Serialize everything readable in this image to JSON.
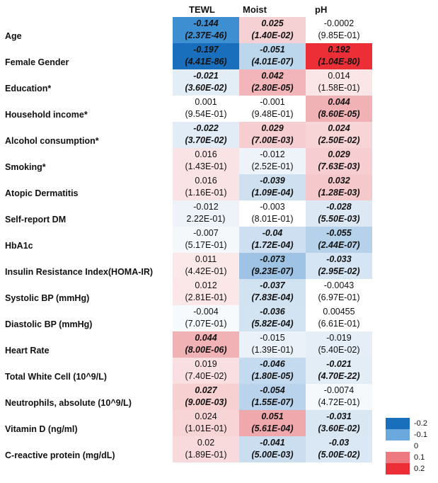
{
  "columns": [
    "TEWL",
    "Moist",
    "pH"
  ],
  "rows": [
    {
      "label": "Age",
      "cells": [
        {
          "coef": "-0.144",
          "p": "(2.37E-46)",
          "sig": true,
          "color": "#3d8fd2"
        },
        {
          "coef": "0.025",
          "p": "(1.40E-02)",
          "sig": true,
          "color": "#f6d1d3"
        },
        {
          "coef": "-0.0002",
          "p": "(9.85E-01)",
          "sig": false,
          "color": "#ffffff"
        }
      ]
    },
    {
      "label": "Female Gender",
      "cells": [
        {
          "coef": "-0.197",
          "p": "(4.41E-86)",
          "sig": true,
          "color": "#1a6fbd"
        },
        {
          "coef": "-0.051",
          "p": "(4.01E-07)",
          "sig": true,
          "color": "#bcd6ec"
        },
        {
          "coef": "0.192",
          "p": "(1.04E-80)",
          "sig": true,
          "color": "#ec2f36"
        }
      ]
    },
    {
      "label": "Education*",
      "cells": [
        {
          "coef": "-0.021",
          "p": "(3.60E-02)",
          "sig": true,
          "color": "#e3edf6"
        },
        {
          "coef": "0.042",
          "p": "(2.80E-05)",
          "sig": true,
          "color": "#f2b6ba"
        },
        {
          "coef": "0.014",
          "p": "(1.58E-01)",
          "sig": false,
          "color": "#fbe6e7"
        }
      ]
    },
    {
      "label": "Household income*",
      "cells": [
        {
          "coef": "0.001",
          "p": "(9.54E-01)",
          "sig": false,
          "color": "#ffffff"
        },
        {
          "coef": "-0.001",
          "p": "(9.48E-01)",
          "sig": false,
          "color": "#ffffff"
        },
        {
          "coef": "0.044",
          "p": "(8.60E-05)",
          "sig": true,
          "color": "#f1b2b6"
        }
      ]
    },
    {
      "label": "Alcohol consumption*",
      "cells": [
        {
          "coef": "-0.022",
          "p": "(3.70E-02)",
          "sig": true,
          "color": "#e2ecf6"
        },
        {
          "coef": "0.029",
          "p": "(7.00E-03)",
          "sig": true,
          "color": "#f6cdd0"
        },
        {
          "coef": "0.024",
          "p": "(2.50E-02)",
          "sig": true,
          "color": "#f7d4d6"
        }
      ]
    },
    {
      "label": "Smoking*",
      "cells": [
        {
          "coef": "0.016",
          "p": "(1.43E-01)",
          "sig": false,
          "color": "#fae3e4"
        },
        {
          "coef": "-0.012",
          "p": "(2.52E-01)",
          "sig": false,
          "color": "#edf3f9"
        },
        {
          "coef": "0.029",
          "p": "(7.63E-03)",
          "sig": true,
          "color": "#f6cdd0"
        }
      ]
    },
    {
      "label": "Atopic Dermatitis",
      "cells": [
        {
          "coef": "0.016",
          "p": "(1.16E-01)",
          "sig": false,
          "color": "#fae3e4"
        },
        {
          "coef": "-0.039",
          "p": "(1.09E-04)",
          "sig": true,
          "color": "#cfe1f1"
        },
        {
          "coef": "0.032",
          "p": "(1.28E-03)",
          "sig": true,
          "color": "#f5c8cb"
        }
      ]
    },
    {
      "label": "Self-report DM",
      "cells": [
        {
          "coef": "-0.012",
          "p": "2.22E-01)",
          "sig": false,
          "color": "#edf3f9"
        },
        {
          "coef": "-0.003",
          "p": "(8.01E-01)",
          "sig": false,
          "color": "#ffffff"
        },
        {
          "coef": "-0.028",
          "p": "(5.50E-03)",
          "sig": true,
          "color": "#dce8f4"
        }
      ]
    },
    {
      "label": "HbA1c",
      "cells": [
        {
          "coef": "-0.007",
          "p": "(5.17E-01)",
          "sig": false,
          "color": "#f4f8fb"
        },
        {
          "coef": "-0.04",
          "p": "(1.72E-04)",
          "sig": true,
          "color": "#cddff0"
        },
        {
          "coef": "-0.055",
          "p": "(2.44E-07)",
          "sig": true,
          "color": "#b6d2ea"
        }
      ]
    },
    {
      "label": "Insulin Resistance Index(HOMA-IR)",
      "cells": [
        {
          "coef": "0.011",
          "p": "(4.42E-01)",
          "sig": false,
          "color": "#fbe8e9"
        },
        {
          "coef": "-0.073",
          "p": "(9.23E-07)",
          "sig": true,
          "color": "#9fc3e4"
        },
        {
          "coef": "-0.033",
          "p": "(2.95E-02)",
          "sig": true,
          "color": "#d6e5f3"
        }
      ]
    },
    {
      "label": "Systolic BP (mmHg)",
      "cells": [
        {
          "coef": "0.012",
          "p": "(2.81E-01)",
          "sig": false,
          "color": "#fbe7e8"
        },
        {
          "coef": "-0.037",
          "p": "(7.83E-04)",
          "sig": true,
          "color": "#d1e2f1"
        },
        {
          "coef": "-0.0043",
          "p": "(6.97E-01)",
          "sig": false,
          "color": "#ffffff"
        }
      ]
    },
    {
      "label": "Diastolic BP (mmHg)",
      "cells": [
        {
          "coef": "-0.004",
          "p": "(7.07E-01)",
          "sig": false,
          "color": "#f7fafc"
        },
        {
          "coef": "-0.036",
          "p": "(5.82E-04)",
          "sig": true,
          "color": "#d2e3f2"
        },
        {
          "coef": "0.00455",
          "p": "(6.61E-01)",
          "sig": false,
          "color": "#ffffff"
        }
      ]
    },
    {
      "label": "Heart Rate",
      "cells": [
        {
          "coef": "0.044",
          "p": "(8.00E-06)",
          "sig": true,
          "color": "#f1b2b6"
        },
        {
          "coef": "-0.015",
          "p": "(1.39E-01)",
          "sig": false,
          "color": "#eaf1f8"
        },
        {
          "coef": "-0.019",
          "p": "(5.40E-02)",
          "sig": false,
          "color": "#e5eef7"
        }
      ]
    },
    {
      "label": "Total White Cell (10^9/L)",
      "cells": [
        {
          "coef": "0.019",
          "p": "(7.40E-02)",
          "sig": false,
          "color": "#f9dfe1"
        },
        {
          "coef": "-0.046",
          "p": "(1.80E-05)",
          "sig": true,
          "color": "#c4daee"
        },
        {
          "coef": "-0.021",
          "p": "(4.70E-22)",
          "sig": true,
          "color": "#e3edf6"
        }
      ]
    },
    {
      "label": "Neutrophils, absolute (10^9/L)",
      "cells": [
        {
          "coef": "0.027",
          "p": "(9.00E-03)",
          "sig": true,
          "color": "#f7d0d2"
        },
        {
          "coef": "-0.054",
          "p": "(1.55E-07)",
          "sig": true,
          "color": "#b8d3eb"
        },
        {
          "coef": "-0.0074",
          "p": "(4.72E-01)",
          "sig": false,
          "color": "#f5f9fc"
        }
      ]
    },
    {
      "label": "Vitamin D (ng/ml)",
      "cells": [
        {
          "coef": "0.024",
          "p": "(1.01E-01)",
          "sig": false,
          "color": "#f7d4d6"
        },
        {
          "coef": "0.051",
          "p": "(5.61E-04)",
          "sig": true,
          "color": "#efa9ad"
        },
        {
          "coef": "-0.031",
          "p": "(3.60E-02)",
          "sig": true,
          "color": "#d9e7f3"
        }
      ]
    },
    {
      "label": "C-reactive protein (mg/dL)",
      "cells": [
        {
          "coef": "0.02",
          "p": "(1.89E-01)",
          "sig": false,
          "color": "#f8dadc"
        },
        {
          "coef": "-0.041",
          "p": "(5.00E-03)",
          "sig": true,
          "color": "#cbdef0"
        },
        {
          "coef": "-0.03",
          "p": "(5.00E-02)",
          "sig": true,
          "color": "#dae7f4"
        }
      ]
    }
  ],
  "legend": [
    {
      "label": "-0.2",
      "color": "#1a6fbd"
    },
    {
      "label": "-0.1",
      "color": "#6aa8dd"
    },
    {
      "label": "0",
      "color": "#ffffff"
    },
    {
      "label": "0.1",
      "color": "#ec7a80"
    },
    {
      "label": "0.2",
      "color": "#ec2f36"
    }
  ]
}
